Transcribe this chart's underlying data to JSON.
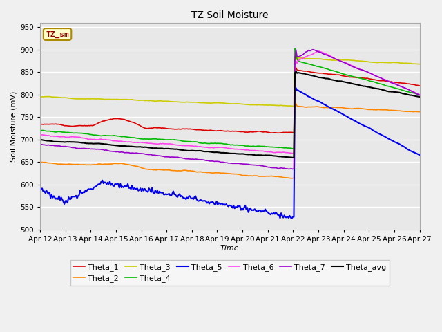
{
  "title": "TZ Soil Moisture",
  "xlabel": "Time",
  "ylabel": "Soil Moisture (mV)",
  "ylim": [
    500,
    960
  ],
  "yticks": [
    500,
    550,
    600,
    650,
    700,
    750,
    800,
    850,
    900,
    950
  ],
  "xtick_labels": [
    "Apr 12",
    "Apr 13",
    "Apr 14",
    "Apr 15",
    "Apr 16",
    "Apr 17",
    "Apr 18",
    "Apr 19",
    "Apr 20",
    "Apr 21",
    "Apr 22",
    "Apr 23",
    "Apr 24",
    "Apr 25",
    "Apr 26",
    "Apr 27"
  ],
  "series_colors": {
    "Theta_1": "#dd0000",
    "Theta_2": "#ff8800",
    "Theta_3": "#cccc00",
    "Theta_4": "#00bb00",
    "Theta_5": "#0000ee",
    "Theta_6": "#ff44ee",
    "Theta_7": "#9900cc",
    "Theta_avg": "#000000"
  },
  "annotation_label": "TZ_sm",
  "annotation_bg": "#ffffcc",
  "annotation_border": "#aa8800",
  "bg_color": "#e8e8e8",
  "grid_color": "#ffffff",
  "fig_bg": "#f0f0f0"
}
